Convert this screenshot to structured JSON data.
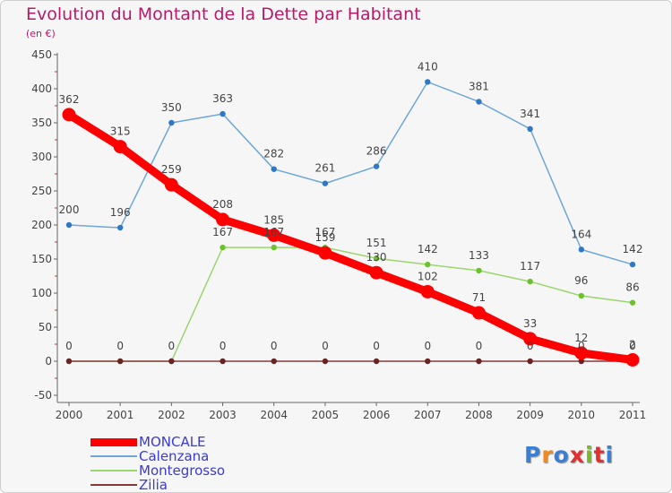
{
  "header": {
    "title": "Evolution du Montant de la Dette par Habitant",
    "subtitle": "(en €)"
  },
  "logo": {
    "text": "Proxiti",
    "letter_colors": [
      "#3a7fd6",
      "#f08a1c",
      "#3a7fd6",
      "#e03030",
      "#7ab82a",
      "#e03030",
      "#3a7fd6"
    ]
  },
  "chart_data": {
    "type": "line",
    "x": [
      "2000",
      "2001",
      "2002",
      "2003",
      "2004",
      "2005",
      "2006",
      "2007",
      "2008",
      "2009",
      "2010",
      "2011"
    ],
    "ylim": [
      -50,
      450
    ],
    "yticks": [
      "-50",
      "0",
      "50",
      "100",
      "150",
      "200",
      "250",
      "300",
      "350",
      "400",
      "450"
    ],
    "grid": false,
    "legend_position": "bottom-left",
    "series": [
      {
        "name": "MONCALE",
        "color": "#ff0000",
        "marker_color": "#ff0000",
        "emphasis": true,
        "values": [
          362,
          315,
          259,
          208,
          185,
          159,
          130,
          102,
          71,
          33,
          12,
          2
        ],
        "labels": [
          "362",
          "315",
          "259",
          "208",
          "185",
          "159",
          "130",
          "102",
          "71",
          "33",
          "12",
          "2"
        ]
      },
      {
        "name": "Calenzana",
        "color": "#6ea7d8",
        "marker_color": "#2f78c4",
        "values": [
          200,
          196,
          350,
          363,
          282,
          261,
          286,
          410,
          381,
          341,
          164,
          142
        ],
        "labels": [
          "200",
          "196",
          "350",
          "363",
          "282",
          "261",
          "286",
          "410",
          "381",
          "341",
          "164",
          "142"
        ]
      },
      {
        "name": "Montegrosso",
        "color": "#9ad66e",
        "marker_color": "#6cc22c",
        "values": [
          0,
          0,
          0,
          167,
          167,
          167,
          151,
          142,
          133,
          117,
          96,
          86
        ],
        "labels": [
          "",
          "",
          "",
          "167",
          "167",
          "167",
          "151",
          "142",
          "133",
          "117",
          "96",
          "86"
        ]
      },
      {
        "name": "Zilia",
        "color": "#8b3a3a",
        "marker_color": "#6a2222",
        "values": [
          0,
          0,
          0,
          0,
          0,
          0,
          0,
          0,
          0,
          0,
          0,
          0
        ],
        "labels": [
          "0",
          "0",
          "0",
          "0",
          "0",
          "0",
          "0",
          "0",
          "0",
          "0",
          "0",
          "0"
        ]
      }
    ]
  }
}
